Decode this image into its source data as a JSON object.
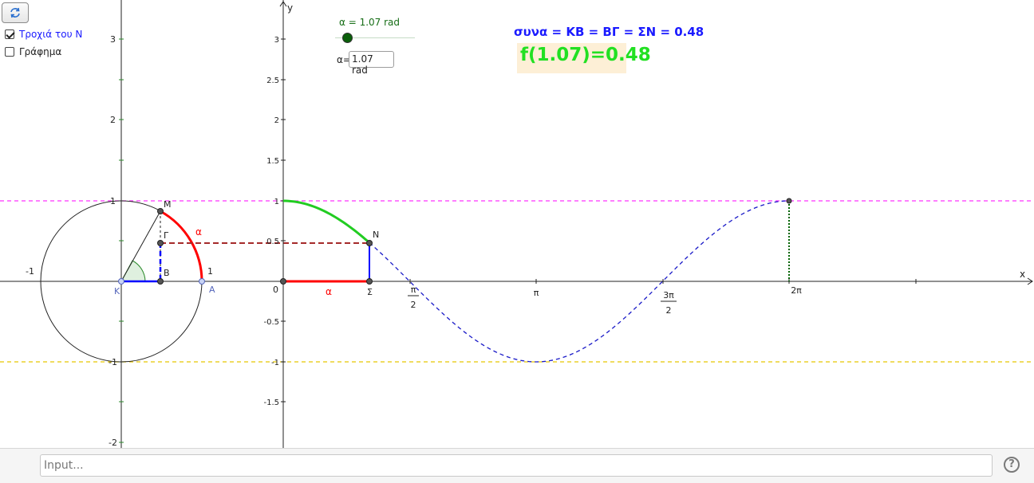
{
  "toolbar": {
    "refresh_icon": "refresh-icon"
  },
  "checkboxes": [
    {
      "label": "Τροχιά του Ν",
      "checked": true,
      "color": "#1a1aff"
    },
    {
      "label": "Γράφημα",
      "checked": false,
      "color": "#222222"
    }
  ],
  "slider": {
    "label": "α = 1.07 rad",
    "value": 1.07,
    "min": 0,
    "max": 6.28
  },
  "alpha_input": {
    "label": "α=",
    "value": "1.07 rad"
  },
  "formula": {
    "cos_text": "συνα = ΚΒ = ΒΓ = ΣΝ = 0.48",
    "f_text": "f(1.07)=0.48"
  },
  "axes": {
    "x_label": "x",
    "y_label": "y",
    "origin_label": "0",
    "left_y_ticks": [
      "3",
      "2",
      "1",
      "-1",
      "-2"
    ],
    "right_y_ticks": [
      "3",
      "2.5",
      "2",
      "1.5",
      "1",
      "0.5",
      "-0.5",
      "-1",
      "-1.5"
    ],
    "x_ticks": [
      "π",
      "2π"
    ],
    "frac_pi_2": {
      "num": "π",
      "den": "2"
    },
    "frac_3pi_2": {
      "num": "3π",
      "den": "2"
    }
  },
  "circle_labels": {
    "minus_one": "-1",
    "one": "1",
    "K": "Κ",
    "B": "Β",
    "A": "Α",
    "M": "Μ",
    "Gamma": "Γ",
    "alpha": "α"
  },
  "graph_labels": {
    "N": "Ν",
    "Sigma": "Σ",
    "alpha": "α"
  },
  "colors": {
    "pink": "#ff33ff",
    "yellow": "#e6c800",
    "red": "#ff0000",
    "blue": "#0000ff",
    "dark_red": "#a52a2a",
    "green": "#22cc22",
    "dark_green": "#006400",
    "angle_fill": "#dff0df"
  },
  "input_bar": {
    "placeholder": "Input..."
  },
  "help": {
    "glyph": "?"
  }
}
